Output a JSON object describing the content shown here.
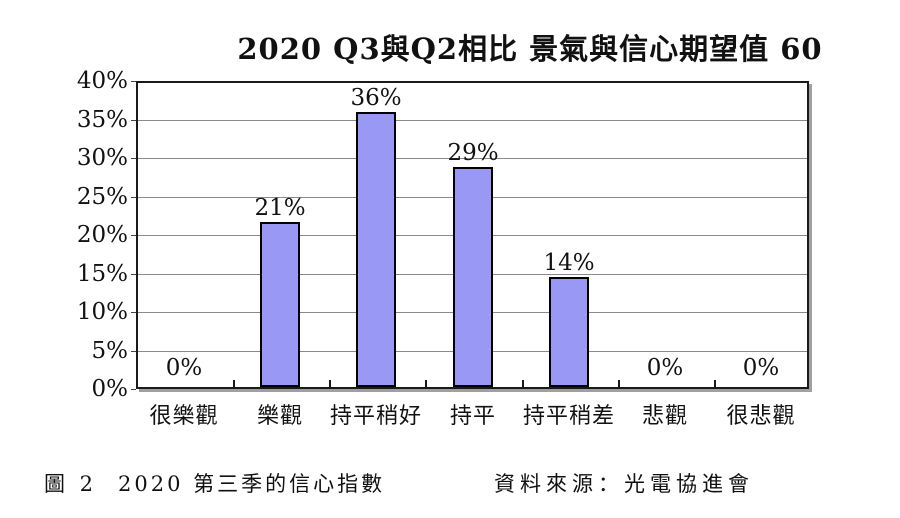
{
  "title": "2020 Q3與Q2相比 景氣與信心期望值 60",
  "chart_data": {
    "type": "bar",
    "title": "2020 Q3與Q2相比 景氣與信心期望值 60",
    "categories": [
      "很樂觀",
      "樂觀",
      "持平稍好",
      "持平",
      "持平稍差",
      "悲觀",
      "很悲觀"
    ],
    "values": [
      0,
      21.4,
      35.7,
      28.6,
      14.3,
      0,
      0
    ],
    "data_labels": [
      "0%",
      "21%",
      "36%",
      "29%",
      "14%",
      "0%",
      "0%"
    ],
    "xlabel": "",
    "ylabel": "",
    "ylim": [
      0,
      40
    ],
    "y_tick_step": 5,
    "y_tick_labels": [
      "0%",
      "5%",
      "10%",
      "15%",
      "20%",
      "25%",
      "30%",
      "35%",
      "40%"
    ],
    "grid": true,
    "legend": false,
    "bar_color": "#9999F5",
    "bar_border_color": "#000000",
    "gridline_color": "#8a8a8a"
  },
  "caption": {
    "figure_label": "圖 2",
    "figure_title": "2020 第三季的信心指數",
    "source": "資料來源：光電協進會"
  }
}
